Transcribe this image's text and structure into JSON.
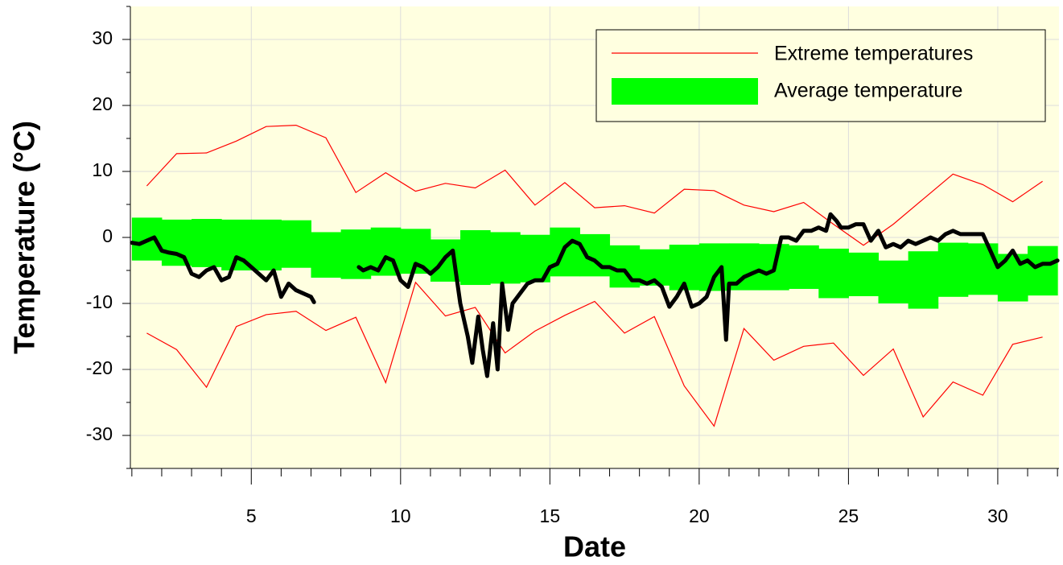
{
  "chart_data": {
    "type": "line",
    "xlabel": "Date",
    "ylabel": "Temperature (°C)",
    "xlim": [
      0.95,
      32.05
    ],
    "ylim": [
      -35,
      35
    ],
    "xticks": [
      5,
      10,
      15,
      20,
      25,
      30
    ],
    "yticks": [
      -30,
      -20,
      -10,
      0,
      10,
      20,
      30
    ],
    "xminorticks": [
      1,
      2,
      3,
      4,
      6,
      7,
      8,
      9,
      11,
      12,
      13,
      14,
      16,
      17,
      18,
      19,
      21,
      22,
      23,
      24,
      26,
      27,
      28,
      29,
      31,
      32
    ],
    "yminorticks": [
      -35,
      -25,
      -15,
      -5,
      5,
      15,
      25,
      35
    ],
    "grid": true,
    "background": "#ffffe0",
    "legend": "upper right",
    "series": [
      {
        "name": "Extreme temperatures",
        "color": "#ff0000",
        "x": [
          1.5,
          2.5,
          3.5,
          4.5,
          5.5,
          6.5,
          7.5,
          8.5,
          9.5,
          10.5,
          11.5,
          12.5,
          13.5,
          14.5,
          15.5,
          16.5,
          17.5,
          18.5,
          19.5,
          20.5,
          21.5,
          22.5,
          23.5,
          24.5,
          25.5,
          26.5,
          27.5,
          28.5,
          29.5,
          30.5,
          31.5
        ],
        "upper": [
          7.8,
          12.7,
          12.8,
          14.6,
          16.8,
          17.0,
          15.1,
          6.8,
          9.8,
          7.0,
          8.2,
          7.5,
          10.2,
          4.9,
          8.3,
          4.5,
          4.8,
          3.7,
          7.3,
          7.1,
          4.9,
          3.9,
          5.3,
          2.0,
          -1.2,
          2.0,
          5.8,
          9.6,
          8.0,
          5.4,
          8.5
        ],
        "lower": [
          -14.5,
          -17.0,
          -22.7,
          -13.5,
          -11.7,
          -11.2,
          -14.1,
          -12.1,
          -22.0,
          -6.8,
          -11.9,
          -10.6,
          -17.5,
          -14.2,
          -11.8,
          -9.7,
          -14.5,
          -12.0,
          -22.5,
          -28.6,
          -13.8,
          -18.6,
          -16.5,
          -16.0,
          -20.9,
          -16.9,
          -27.2,
          -21.9,
          -23.9,
          -16.2,
          -15.1
        ]
      },
      {
        "name": "Average temperature",
        "color": "#00ff00",
        "x": [
          1,
          2,
          3,
          4,
          5,
          6,
          7,
          8,
          9,
          10,
          11,
          12,
          13,
          14,
          15,
          16,
          17,
          18,
          19,
          20,
          21,
          22,
          23,
          24,
          25,
          26,
          27,
          28,
          29,
          30,
          31
        ],
        "high": [
          3.0,
          2.7,
          2.8,
          2.7,
          2.7,
          2.6,
          0.8,
          1.2,
          1.5,
          1.3,
          -0.3,
          1.1,
          0.8,
          0.4,
          1.5,
          0.5,
          -1.2,
          -1.8,
          -1.1,
          -0.9,
          -0.9,
          -1.0,
          -1.2,
          -1.7,
          -2.3,
          -3.5,
          -2.1,
          -0.8,
          -0.9,
          -2.5,
          -1.3
        ],
        "low": [
          -3.5,
          -4.3,
          -4.5,
          -5.0,
          -5.0,
          -4.6,
          -6.1,
          -6.3,
          -5.8,
          -5.5,
          -6.7,
          -7.2,
          -7.0,
          -6.8,
          -5.9,
          -5.9,
          -7.6,
          -7.3,
          -8.0,
          -8.1,
          -8.0,
          -8.0,
          -7.8,
          -9.2,
          -8.9,
          -10.0,
          -10.8,
          -9.0,
          -8.7,
          -9.7,
          -8.8
        ]
      },
      {
        "color": "#000000",
        "x": [
          1.0,
          1.25,
          1.5,
          1.75,
          2.0,
          2.25,
          2.5,
          2.75,
          3.0,
          3.25,
          3.5,
          3.75,
          4.0,
          4.25,
          4.5,
          4.75,
          5.0,
          5.25,
          5.5,
          5.75,
          6.0,
          6.25,
          6.5,
          6.75,
          7.0,
          7.1,
          8.0,
          8.6,
          8.75,
          9.0,
          9.25,
          9.5,
          9.75,
          10.0,
          10.25,
          10.5,
          10.75,
          11.0,
          11.25,
          11.5,
          11.75,
          12.0,
          12.25,
          12.4,
          12.6,
          12.75,
          12.9,
          13.1,
          13.25,
          13.4,
          13.6,
          13.75,
          14.0,
          14.25,
          14.5,
          14.75,
          15.0,
          15.25,
          15.5,
          15.75,
          16.0,
          16.25,
          16.5,
          16.75,
          17.0,
          17.25,
          17.5,
          17.75,
          18.0,
          18.25,
          18.5,
          18.75,
          19.0,
          19.25,
          19.5,
          19.75,
          20.0,
          20.25,
          20.5,
          20.75,
          20.9,
          21.0,
          21.25,
          21.5,
          21.75,
          22.0,
          22.25,
          22.5,
          22.75,
          23.0,
          23.25,
          23.5,
          23.75,
          24.0,
          24.25,
          24.4,
          24.6,
          24.75,
          25.0,
          25.25,
          25.5,
          25.75,
          26.0,
          26.25,
          26.5,
          26.75,
          27.0,
          27.25,
          27.5,
          27.75,
          28.0,
          28.25,
          28.5,
          28.75,
          29.0,
          29.25,
          29.5,
          29.75,
          30.0,
          30.25,
          30.5,
          30.75,
          31.0,
          31.25,
          31.5,
          31.75,
          32.0
        ],
        "values": [
          -0.8,
          -1.0,
          -0.5,
          0.0,
          -2.0,
          -2.3,
          -2.5,
          -3.0,
          -5.5,
          -6.0,
          -5.0,
          -4.5,
          -6.5,
          -6.0,
          -3.0,
          -3.5,
          -4.5,
          -5.5,
          -6.5,
          -5.0,
          -9.0,
          -7.0,
          -8.0,
          -8.5,
          -9.0,
          -9.8,
          null,
          -4.5,
          -5.0,
          -4.5,
          -5.0,
          -3.0,
          -3.5,
          -6.5,
          -7.5,
          -4.0,
          -4.5,
          -5.5,
          -4.5,
          -3.0,
          -2.0,
          -10.0,
          -15.0,
          -19.0,
          -12.0,
          -17.0,
          -21.0,
          -13.0,
          -20.0,
          -7.0,
          -14.0,
          -10.0,
          -8.5,
          -7.0,
          -6.5,
          -6.5,
          -4.5,
          -4.0,
          -1.5,
          -0.5,
          -1.0,
          -3.0,
          -3.5,
          -4.5,
          -4.5,
          -5.0,
          -5.0,
          -6.5,
          -6.5,
          -7.0,
          -6.5,
          -7.5,
          -10.5,
          -9.0,
          -7.0,
          -10.5,
          -10.0,
          -9.0,
          -6.0,
          -4.5,
          -15.5,
          -7.0,
          -7.0,
          -6.0,
          -5.5,
          -5.0,
          -5.5,
          -5.0,
          0.0,
          0.0,
          -0.5,
          1.0,
          1.0,
          1.5,
          1.0,
          3.5,
          2.5,
          1.5,
          1.5,
          2.0,
          2.0,
          -0.5,
          1.0,
          -1.5,
          -1.0,
          -1.5,
          -0.5,
          -1.0,
          -0.5,
          0.0,
          -0.5,
          0.5,
          1.0,
          0.5,
          0.5,
          0.5,
          0.5,
          -2.0,
          -4.5,
          -3.5,
          -2.0,
          -4.0,
          -3.5,
          -4.5,
          -4.0,
          -4.0,
          -3.5
        ]
      }
    ]
  }
}
